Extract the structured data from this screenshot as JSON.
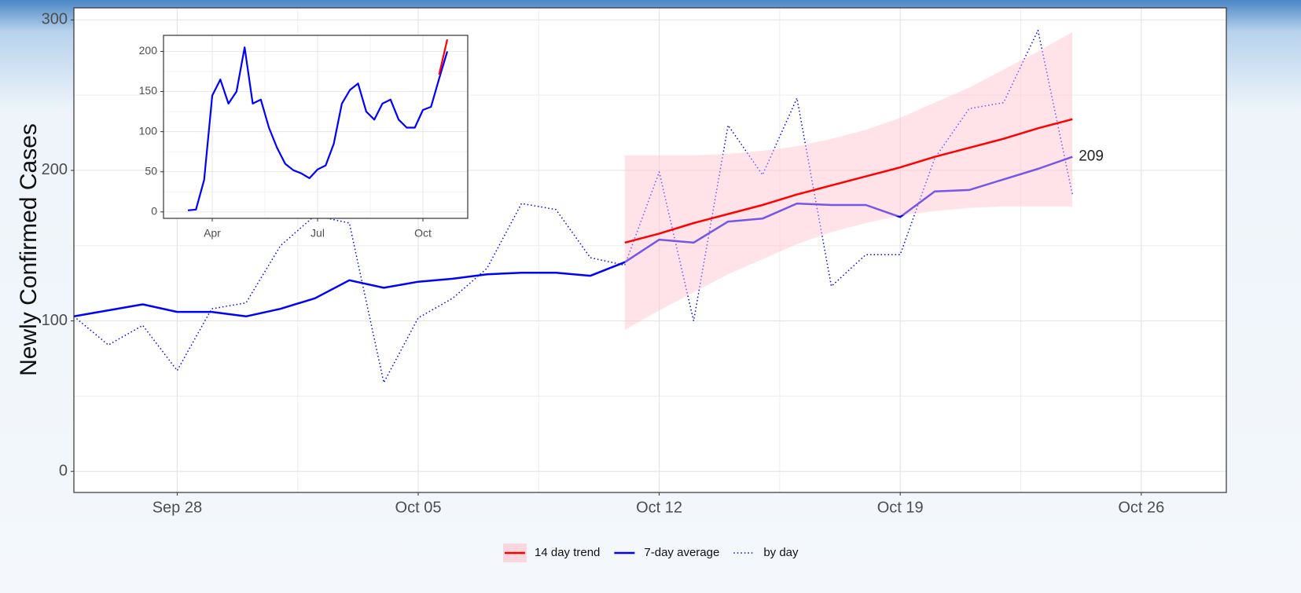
{
  "chart_data": [
    {
      "type": "line",
      "y_label": "Newly Confirmed Cases",
      "categories": [
        null,
        null,
        null,
        "Sep 28",
        null,
        null,
        null,
        null,
        null,
        null,
        "Oct 05",
        null,
        null,
        null,
        null,
        null,
        null,
        "Oct 12",
        null,
        null,
        null,
        null,
        null,
        null,
        "Oct 19",
        null,
        null,
        null,
        null,
        null,
        null,
        "Oct 26",
        null,
        null
      ],
      "ylim": [
        -14,
        308
      ],
      "yticks": [
        0,
        100,
        200,
        300
      ],
      "grid": true,
      "legend": "bottom",
      "series": [
        {
          "name": "14 day trend",
          "color": "#ff0000",
          "band_color": "#ffc0cb",
          "values": [
            null,
            null,
            null,
            null,
            null,
            null,
            null,
            null,
            null,
            null,
            null,
            null,
            null,
            null,
            null,
            null,
            152,
            158,
            165,
            171,
            177,
            184,
            190,
            196,
            202,
            209,
            215,
            221,
            228,
            234,
            null,
            null,
            null,
            null
          ],
          "band_lower": [
            null,
            null,
            null,
            null,
            null,
            null,
            null,
            null,
            null,
            null,
            null,
            null,
            null,
            null,
            null,
            null,
            94,
            107,
            119,
            131,
            141,
            151,
            159,
            165,
            170,
            173,
            175,
            176,
            176,
            176,
            null,
            null,
            null,
            null
          ],
          "band_upper": [
            null,
            null,
            null,
            null,
            null,
            null,
            null,
            null,
            null,
            null,
            null,
            null,
            null,
            null,
            null,
            null,
            210,
            210,
            210,
            211,
            213,
            216,
            221,
            227,
            235,
            245,
            255,
            267,
            279,
            292,
            null,
            null,
            null,
            null
          ]
        },
        {
          "name": "7-day average",
          "color": "#0000ff",
          "annotate_last": true,
          "values": [
            103,
            107,
            111,
            106,
            106,
            103,
            108,
            115,
            127,
            122,
            126,
            128,
            131,
            132,
            132,
            130,
            139,
            154,
            152,
            166,
            168,
            178,
            177,
            177,
            169,
            186,
            187,
            194,
            201,
            209,
            null,
            null,
            null,
            null
          ]
        },
        {
          "name": "by day",
          "color": "#0000ff",
          "style": "dotted",
          "values": [
            103,
            84,
            97,
            67,
            108,
            112,
            150,
            170,
            165,
            59,
            102,
            115,
            135,
            178,
            174,
            142,
            137,
            199,
            100,
            230,
            197,
            248,
            123,
            144,
            144,
            208,
            241,
            245,
            293,
            184,
            null,
            null,
            null,
            null
          ]
        }
      ]
    },
    {
      "type": "line",
      "categories": [
        null,
        null,
        null,
        "Apr",
        null,
        null,
        null,
        null,
        null,
        null,
        null,
        null,
        null,
        null,
        null,
        null,
        "Jul",
        null,
        null,
        null,
        null,
        null,
        null,
        null,
        null,
        null,
        null,
        null,
        null,
        "Oct",
        null,
        null,
        null,
        null,
        null
      ],
      "ylim": [
        -8,
        220
      ],
      "yticks": [
        0,
        50,
        100,
        150,
        200
      ],
      "grid": true,
      "series": [
        {
          "color": "#0000ff",
          "values": [
            2,
            3,
            40,
            145,
            165,
            135,
            150,
            205,
            135,
            140,
            105,
            80,
            60,
            52,
            48,
            42,
            53,
            58,
            85,
            135,
            152,
            160,
            125,
            115,
            135,
            140,
            115,
            105,
            105,
            127,
            131,
            166,
            200,
            null,
            null
          ]
        },
        {
          "color": "#ff0000",
          "values": [
            null,
            null,
            null,
            null,
            null,
            null,
            null,
            null,
            null,
            null,
            null,
            null,
            null,
            null,
            null,
            null,
            null,
            null,
            null,
            null,
            null,
            null,
            null,
            null,
            null,
            null,
            null,
            null,
            null,
            null,
            null,
            171,
            215,
            null,
            null
          ]
        }
      ]
    }
  ]
}
